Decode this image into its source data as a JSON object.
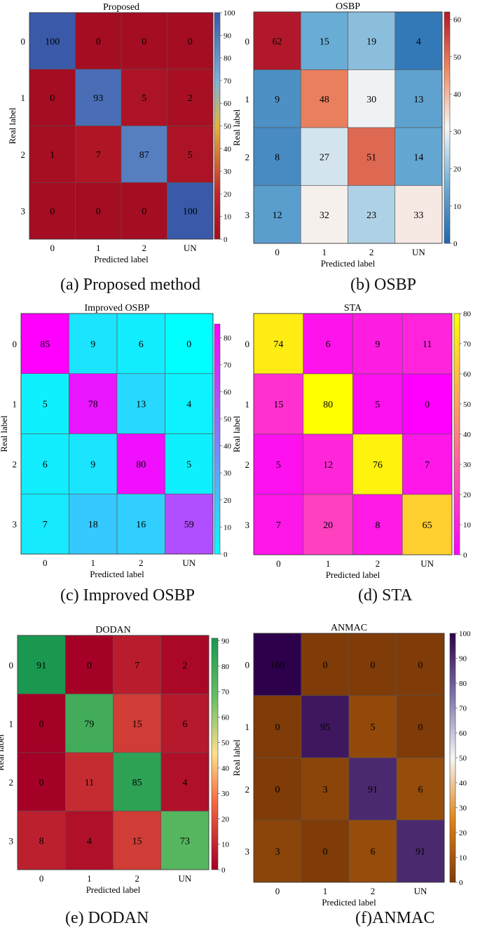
{
  "figure": {
    "captions": [
      "(a) Proposed method",
      "(b) OSBP",
      "(c) Improved OSBP",
      "(d) STA",
      "(e) DODAN",
      "(f)ANMAC"
    ]
  },
  "chart_data": [
    {
      "type": "heatmap",
      "title": "Proposed",
      "caption": "(a) Proposed method",
      "xlabel": "Predicted label",
      "ylabel": "Real label",
      "x_categories": [
        "0",
        "1",
        "2",
        "UN"
      ],
      "y_categories": [
        "0",
        "1",
        "2",
        "3"
      ],
      "values": [
        [
          100,
          0,
          0,
          0
        ],
        [
          0,
          93,
          5,
          2
        ],
        [
          1,
          7,
          87,
          5
        ],
        [
          0,
          0,
          0,
          100
        ]
      ],
      "colormap": {
        "range": [
          0,
          100
        ],
        "stops": [
          [
            0,
            "#a50d22"
          ],
          [
            0.2,
            "#c2242b"
          ],
          [
            0.5,
            "#e3b43c"
          ],
          [
            0.7,
            "#7bb0dd"
          ],
          [
            1,
            "#3a5aa9"
          ]
        ]
      },
      "colorbar_ticks": [
        0,
        10,
        20,
        30,
        40,
        50,
        60,
        70,
        80,
        90,
        100
      ],
      "colorbar_tick_colors": [
        "#333333",
        "#e7543a",
        "#e88b2e",
        "#e8a02a",
        "#d6b51f",
        "#d9c22a",
        "#7fb25e",
        "#4aa0cf",
        "#3b87c8",
        "#3a6fbd",
        "#3a5aa9"
      ]
    },
    {
      "type": "heatmap",
      "title": "OSBP",
      "caption": "(b) OSBP",
      "xlabel": "Predicted label",
      "ylabel": "Real label",
      "x_categories": [
        "0",
        "1",
        "2",
        "UN"
      ],
      "y_categories": [
        "0",
        "1",
        "2",
        "3"
      ],
      "values": [
        [
          62,
          15,
          19,
          4
        ],
        [
          9,
          48,
          30,
          13
        ],
        [
          8,
          27,
          51,
          14
        ],
        [
          12,
          32,
          23,
          33
        ]
      ],
      "colormap": {
        "range": [
          0,
          62
        ],
        "stops": [
          [
            0,
            "#2166ac"
          ],
          [
            0.25,
            "#6baed6"
          ],
          [
            0.5,
            "#f7f7f7"
          ],
          [
            0.75,
            "#ef8a62"
          ],
          [
            1,
            "#b2182b"
          ]
        ]
      },
      "colorbar_ticks": [
        0,
        10,
        20,
        30,
        40,
        50,
        60
      ],
      "colorbar_tick_colors": [
        "#333333",
        "#333333",
        "#333333",
        "#333333",
        "#333333",
        "#333333",
        "#333333"
      ]
    },
    {
      "type": "heatmap",
      "title": "Improved OSBP",
      "caption": "(c) Improved OSBP",
      "xlabel": "Predicted label",
      "ylabel": "Real label",
      "x_categories": [
        "0",
        "1",
        "2",
        "UN"
      ],
      "y_categories": [
        "0",
        "1",
        "2",
        "3"
      ],
      "values": [
        [
          85,
          9,
          6,
          0
        ],
        [
          5,
          78,
          13,
          4
        ],
        [
          6,
          9,
          80,
          5
        ],
        [
          7,
          18,
          16,
          59
        ]
      ],
      "colormap": {
        "range": [
          0,
          85
        ],
        "stops": [
          [
            0,
            "#00ffff"
          ],
          [
            1,
            "#ff00ff"
          ]
        ]
      },
      "colorbar_ticks": [
        0,
        10,
        20,
        30,
        40,
        50,
        60,
        70,
        80
      ],
      "colorbar_tick_colors": [
        "#333333",
        "#333333",
        "#333333",
        "#333333",
        "#333333",
        "#333333",
        "#333333",
        "#333333",
        "#333333"
      ]
    },
    {
      "type": "heatmap",
      "title": "STA",
      "caption": "(d) STA",
      "xlabel": "Predicted label",
      "ylabel": "Real label",
      "x_categories": [
        "0",
        "1",
        "2",
        "UN"
      ],
      "y_categories": [
        "0",
        "1",
        "2",
        "3"
      ],
      "values": [
        [
          74,
          6,
          9,
          11
        ],
        [
          15,
          80,
          5,
          0
        ],
        [
          5,
          12,
          76,
          7
        ],
        [
          7,
          20,
          8,
          65
        ]
      ],
      "colormap": {
        "range": [
          0,
          80
        ],
        "stops": [
          [
            0,
            "#ff00ff"
          ],
          [
            1,
            "#ffff00"
          ]
        ]
      },
      "colorbar_ticks": [
        0,
        10,
        20,
        30,
        40,
        50,
        60,
        70,
        80
      ],
      "colorbar_tick_colors": [
        "#333333",
        "#333333",
        "#333333",
        "#333333",
        "#333333",
        "#333333",
        "#333333",
        "#333333",
        "#333333"
      ]
    },
    {
      "type": "heatmap",
      "title": "DODAN",
      "caption": "(e) DODAN",
      "xlabel": "Predicted label",
      "ylabel": "Real label",
      "x_categories": [
        "0",
        "1",
        "2",
        "UN"
      ],
      "y_categories": [
        "0",
        "1",
        "2",
        "3"
      ],
      "values": [
        [
          91,
          0,
          7,
          2
        ],
        [
          0,
          79,
          15,
          6
        ],
        [
          0,
          11,
          85,
          4
        ],
        [
          8,
          4,
          15,
          73
        ]
      ],
      "colormap": {
        "range": [
          0,
          91
        ],
        "stops": [
          [
            0,
            "#a50026"
          ],
          [
            0.3,
            "#f46d43"
          ],
          [
            0.5,
            "#fee08b"
          ],
          [
            0.75,
            "#66bd63"
          ],
          [
            1,
            "#1a9850"
          ]
        ]
      },
      "colorbar_ticks": [
        0,
        10,
        20,
        30,
        40,
        50,
        60,
        70,
        80,
        90
      ],
      "colorbar_tick_colors": [
        "#333333",
        "#333333",
        "#333333",
        "#333333",
        "#333333",
        "#333333",
        "#333333",
        "#333333",
        "#333333",
        "#333333"
      ]
    },
    {
      "type": "heatmap",
      "title": "ANMAC",
      "caption": "(f)ANMAC",
      "xlabel": "Predicted label",
      "ylabel": "Real label",
      "x_categories": [
        "0",
        "1",
        "2",
        "UN"
      ],
      "y_categories": [
        "0",
        "1",
        "2",
        "3"
      ],
      "values": [
        [
          100,
          0,
          0,
          0
        ],
        [
          0,
          95,
          5,
          0
        ],
        [
          0,
          3,
          91,
          6
        ],
        [
          3,
          0,
          6,
          91
        ]
      ],
      "colormap": {
        "range": [
          0,
          100
        ],
        "stops": [
          [
            0,
            "#7f3b08"
          ],
          [
            0.25,
            "#e08214"
          ],
          [
            0.5,
            "#f7f7f7"
          ],
          [
            0.75,
            "#8073ac"
          ],
          [
            1,
            "#2d004b"
          ]
        ]
      },
      "colorbar_ticks": [
        0,
        10,
        20,
        30,
        40,
        50,
        60,
        70,
        80,
        90,
        100
      ],
      "colorbar_tick_colors": [
        "#333333",
        "#333333",
        "#333333",
        "#333333",
        "#333333",
        "#333333",
        "#333333",
        "#333333",
        "#333333",
        "#333333",
        "#333333"
      ]
    }
  ]
}
